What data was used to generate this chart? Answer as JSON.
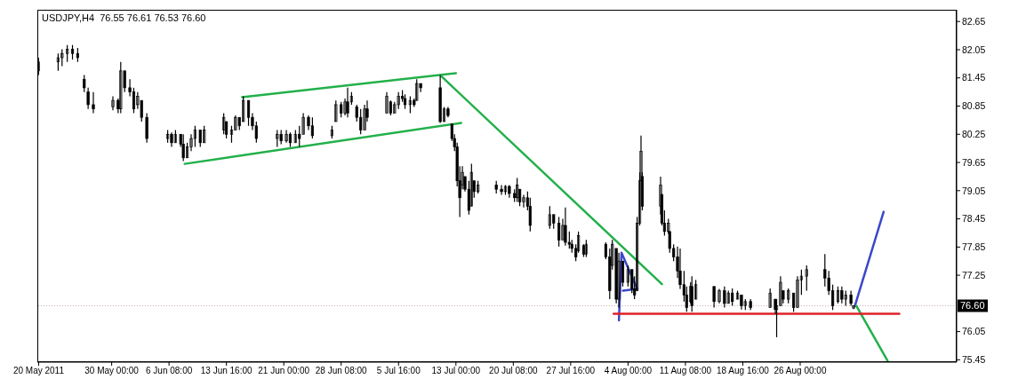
{
  "chart_data": {
    "type": "candlestick",
    "title": "USDJPY,H4  76.55 76.61 76.53 76.60",
    "color": "#000000",
    "x": [
      "2011-05-20T16:00",
      "2011-05-23T04:00",
      "2011-05-23T16:00",
      "2011-05-24T08:00",
      "2011-05-25T00:00",
      "2011-05-25T16:00",
      "2011-05-26T12:00",
      "2011-05-27T00:00",
      "2011-05-27T16:00",
      "2011-05-30T04:00",
      "2011-05-30T20:00",
      "2011-05-31T04:00",
      "2011-05-31T16:00",
      "2011-06-01T08:00",
      "2011-06-01T20:00",
      "2011-06-02T08:00",
      "2011-06-02T20:00",
      "2011-06-03T12:00",
      "2011-06-06T04:00",
      "2011-06-06T16:00",
      "2011-06-07T04:00",
      "2011-06-07T20:00",
      "2011-06-08T04:00",
      "2011-06-08T16:00",
      "2011-06-09T04:00",
      "2011-06-09T16:00",
      "2011-06-10T08:00",
      "2011-06-10T20:00",
      "2011-06-13T08:00",
      "2011-06-13T16:00",
      "2011-06-14T08:00",
      "2011-06-14T20:00",
      "2011-06-15T08:00",
      "2011-06-15T20:00",
      "2011-06-16T12:00",
      "2011-06-17T00:00",
      "2011-06-17T12:00",
      "2011-06-20T04:00",
      "2011-06-20T16:00",
      "2011-06-21T08:00",
      "2011-06-21T20:00",
      "2011-06-22T12:00",
      "2011-06-23T00:00",
      "2011-06-23T12:00",
      "2011-06-24T04:00",
      "2011-06-24T16:00",
      "2011-06-27T04:00",
      "2011-06-27T16:00",
      "2011-06-28T08:00",
      "2011-06-28T20:00",
      "2011-06-29T04:00",
      "2011-06-29T16:00",
      "2011-06-30T08:00",
      "2011-06-30T20:00",
      "2011-07-01T08:00",
      "2011-07-01T16:00",
      "2011-07-04T04:00",
      "2011-07-04T16:00",
      "2011-07-05T04:00",
      "2011-07-05T16:00",
      "2011-07-06T04:00",
      "2011-07-06T12:00",
      "2011-07-07T04:00",
      "2011-07-07T16:00",
      "2011-07-08T00:00",
      "2011-07-08T12:00",
      "2011-07-11T00:00",
      "2011-07-11T12:00",
      "2011-07-12T00:00",
      "2011-07-12T12:00",
      "2011-07-12T20:00",
      "2011-07-13T04:00",
      "2011-07-13T12:00",
      "2011-07-13T20:00",
      "2011-07-14T04:00",
      "2011-07-14T16:00",
      "2011-07-15T00:00",
      "2011-07-15T08:00",
      "2011-07-15T20:00",
      "2011-07-18T04:00",
      "2011-07-18T20:00",
      "2011-07-19T08:00",
      "2011-07-19T20:00",
      "2011-07-20T12:00",
      "2011-07-20T20:00",
      "2011-07-21T04:00",
      "2011-07-21T16:00",
      "2011-07-22T04:00",
      "2011-07-22T12:00",
      "2011-07-25T00:00",
      "2011-07-25T12:00",
      "2011-07-26T04:00",
      "2011-07-26T16:00",
      "2011-07-27T00:00",
      "2011-07-27T12:00",
      "2011-07-27T20:00",
      "2011-07-28T08:00",
      "2011-07-28T16:00",
      "2011-07-29T08:00",
      "2011-07-29T16:00",
      "2011-08-01T04:00",
      "2011-08-01T16:00",
      "2011-08-02T00:00",
      "2011-08-02T12:00",
      "2011-08-02T20:00",
      "2011-08-03T08:00",
      "2011-08-04T00:00",
      "2011-08-04T12:00",
      "2011-08-04T20:00",
      "2011-08-05T04:00",
      "2011-08-05T12:00",
      "2011-08-05T16:00",
      "2011-08-05T20:00",
      "2011-08-08T04:00",
      "2011-08-08T08:00",
      "2011-08-08T16:00",
      "2011-08-09T04:00",
      "2011-08-09T08:00",
      "2011-08-09T20:00",
      "2011-08-10T08:00",
      "2011-08-10T16:00",
      "2011-08-11T04:00",
      "2011-08-11T12:00",
      "2011-08-12T00:00",
      "2011-08-12T04:00",
      "2011-08-12T16:00",
      "2011-08-15T00:00",
      "2011-08-15T16:00",
      "2011-08-16T08:00",
      "2011-08-16T20:00",
      "2011-08-17T08:00",
      "2011-08-18T00:00",
      "2011-08-18T12:00",
      "2011-08-19T00:00",
      "2011-08-19T16:00",
      "2011-08-22T04:00",
      "2011-08-22T20:00",
      "2011-08-23T00:00",
      "2011-08-23T12:00",
      "2011-08-23T20:00",
      "2011-08-24T12:00",
      "2011-08-25T04:00",
      "2011-08-25T16:00",
      "2011-08-26T04:00",
      "2011-08-26T20:00",
      "2011-08-29T04:00",
      "2011-08-29T16:00",
      "2011-08-30T04:00",
      "2011-08-30T20:00",
      "2011-08-31T08:00",
      "2011-08-31T20:00",
      "2011-09-01T12:00",
      "2011-09-01T20:00"
    ],
    "ohlc": [
      [
        81.6,
        81.88,
        81.51,
        81.79
      ],
      [
        81.79,
        81.97,
        81.6,
        81.88
      ],
      [
        81.88,
        82.06,
        81.7,
        81.97
      ],
      [
        81.97,
        82.15,
        81.79,
        82.06
      ],
      [
        82.06,
        82.15,
        81.84,
        81.97
      ],
      [
        81.97,
        82.09,
        81.79,
        81.88
      ],
      [
        81.42,
        81.51,
        81.15,
        81.24
      ],
      [
        81.15,
        81.24,
        80.79,
        80.88
      ],
      [
        80.88,
        81.15,
        80.7,
        80.79
      ],
      [
        80.83,
        81.06,
        80.76,
        80.97
      ],
      [
        80.97,
        81.01,
        80.7,
        80.79
      ],
      [
        80.79,
        81.79,
        80.7,
        81.6
      ],
      [
        81.6,
        81.6,
        81.15,
        81.24
      ],
      [
        81.24,
        81.42,
        81.06,
        81.15
      ],
      [
        81.15,
        81.24,
        80.7,
        80.79
      ],
      [
        80.88,
        81.15,
        80.79,
        81.06
      ],
      [
        80.97,
        80.97,
        80.52,
        80.61
      ],
      [
        80.61,
        80.7,
        80.07,
        80.16
      ],
      [
        80.16,
        80.34,
        80.07,
        80.25
      ],
      [
        80.25,
        80.29,
        79.98,
        80.07
      ],
      [
        80.07,
        80.34,
        80.07,
        80.25
      ],
      [
        80.25,
        80.25,
        79.98,
        80.04
      ],
      [
        80.04,
        80.25,
        79.68,
        79.75
      ],
      [
        79.75,
        80.07,
        79.75,
        79.98
      ],
      [
        79.98,
        80.25,
        79.89,
        80.16
      ],
      [
        80.16,
        80.43,
        79.98,
        80.34
      ],
      [
        80.34,
        80.34,
        79.98,
        80.07
      ],
      [
        80.07,
        80.43,
        80.07,
        80.34
      ],
      [
        80.34,
        80.7,
        80.25,
        80.61
      ],
      [
        80.52,
        80.52,
        80.16,
        80.25
      ],
      [
        80.25,
        80.43,
        80.07,
        80.34
      ],
      [
        80.34,
        80.65,
        80.34,
        80.61
      ],
      [
        80.61,
        80.61,
        80.34,
        80.43
      ],
      [
        80.52,
        81.06,
        80.52,
        80.97
      ],
      [
        80.97,
        80.97,
        80.43,
        80.61
      ],
      [
        80.61,
        80.7,
        80.34,
        80.43
      ],
      [
        80.43,
        80.52,
        80.07,
        80.16
      ],
      [
        80.16,
        80.34,
        79.98,
        80.25
      ],
      [
        80.25,
        80.34,
        80.04,
        80.11
      ],
      [
        80.11,
        80.34,
        80.07,
        80.25
      ],
      [
        80.25,
        80.29,
        79.98,
        80.07
      ],
      [
        80.07,
        80.34,
        80.07,
        80.25
      ],
      [
        80.25,
        80.43,
        79.98,
        80.16
      ],
      [
        80.25,
        80.7,
        80.25,
        80.61
      ],
      [
        80.61,
        80.65,
        80.34,
        80.43
      ],
      [
        80.43,
        80.61,
        80.16,
        80.22
      ],
      [
        80.22,
        80.43,
        80.16,
        80.34
      ],
      [
        80.52,
        80.97,
        80.52,
        80.88
      ],
      [
        80.88,
        80.94,
        80.61,
        80.7
      ],
      [
        80.7,
        81.01,
        80.65,
        80.94
      ],
      [
        80.94,
        81.24,
        80.61,
        80.7
      ],
      [
        80.94,
        81.15,
        80.88,
        81.06
      ],
      [
        80.83,
        80.88,
        80.52,
        80.61
      ],
      [
        80.61,
        80.79,
        80.25,
        80.34
      ],
      [
        80.34,
        80.88,
        80.34,
        80.79
      ],
      [
        80.79,
        80.97,
        80.52,
        80.61
      ],
      [
        80.7,
        81.15,
        80.7,
        81.06
      ],
      [
        80.94,
        80.97,
        80.65,
        80.7
      ],
      [
        80.7,
        80.94,
        80.7,
        80.88
      ],
      [
        80.88,
        81.15,
        80.79,
        81.06
      ],
      [
        81.06,
        81.19,
        80.94,
        81.01
      ],
      [
        81.01,
        81.1,
        80.79,
        80.88
      ],
      [
        80.88,
        81.06,
        80.7,
        80.97
      ],
      [
        80.97,
        81.01,
        80.83,
        80.88
      ],
      [
        80.97,
        81.42,
        80.97,
        81.33
      ],
      [
        81.33,
        81.33,
        81.15,
        81.24
      ],
      [
        81.24,
        81.51,
        80.49,
        80.52
      ],
      [
        80.52,
        80.83,
        80.52,
        80.79
      ],
      [
        80.79,
        80.83,
        80.61,
        80.65
      ],
      [
        80.47,
        80.47,
        80.11,
        80.16
      ],
      [
        80.16,
        80.25,
        79.89,
        79.98
      ],
      [
        79.98,
        80.07,
        79.14,
        79.26
      ],
      [
        79.26,
        79.57,
        78.49,
        78.9
      ],
      [
        79.17,
        79.57,
        79.08,
        79.44
      ],
      [
        79.35,
        79.35,
        79.03,
        79.08
      ],
      [
        79.08,
        79.26,
        78.54,
        78.63
      ],
      [
        78.72,
        79.62,
        78.72,
        79.44
      ],
      [
        79.26,
        79.26,
        78.9,
        79.03
      ],
      [
        79.03,
        79.26,
        78.99,
        79.17
      ],
      [
        79.17,
        79.26,
        78.99,
        79.08
      ],
      [
        79.08,
        79.17,
        78.96,
        79.03
      ],
      [
        79.03,
        79.17,
        78.96,
        79.14
      ],
      [
        79.14,
        79.17,
        78.9,
        78.99
      ],
      [
        78.99,
        79.08,
        78.81,
        78.9
      ],
      [
        78.9,
        79.32,
        78.81,
        79.17
      ],
      [
        79.08,
        79.08,
        78.72,
        78.81
      ],
      [
        78.81,
        78.96,
        78.69,
        78.9
      ],
      [
        78.9,
        79.03,
        78.63,
        78.72
      ],
      [
        78.72,
        78.9,
        78.18,
        78.31
      ],
      [
        78.31,
        78.72,
        78.24,
        78.54
      ],
      [
        78.54,
        78.54,
        78.24,
        78.36
      ],
      [
        78.36,
        78.49,
        77.86,
        78.0
      ],
      [
        78.0,
        78.45,
        78.0,
        78.31
      ],
      [
        78.31,
        78.69,
        77.88,
        77.95
      ],
      [
        77.95,
        78.18,
        77.82,
        77.91
      ],
      [
        77.91,
        78.0,
        77.73,
        77.82
      ],
      [
        77.82,
        77.91,
        77.55,
        77.64
      ],
      [
        77.77,
        78.18,
        77.73,
        78.09
      ],
      [
        77.88,
        77.91,
        77.64,
        77.7
      ],
      [
        77.7,
        78.0,
        77.64,
        77.91
      ],
      [
        77.91,
        77.95,
        77.59,
        77.64
      ],
      [
        77.64,
        77.82,
        76.74,
        76.92
      ],
      [
        77.46,
        78.0,
        77.37,
        77.91
      ],
      [
        77.82,
        77.82,
        76.65,
        76.74
      ],
      [
        76.74,
        77.73,
        76.56,
        77.55
      ],
      [
        77.55,
        77.55,
        77.01,
        77.1
      ],
      [
        77.1,
        77.46,
        77.01,
        77.37
      ],
      [
        77.37,
        77.37,
        76.87,
        76.96
      ],
      [
        76.96,
        77.23,
        76.74,
        76.83
      ],
      [
        76.92,
        78.49,
        76.92,
        78.36
      ],
      [
        78.36,
        79.44,
        78.31,
        79.26
      ],
      [
        79.26,
        80.22,
        79.26,
        79.89
      ],
      [
        79.35,
        79.44,
        78.63,
        78.72
      ],
      [
        78.72,
        79.35,
        78.54,
        79.17
      ],
      [
        78.96,
        78.99,
        78.31,
        78.36
      ],
      [
        78.36,
        78.63,
        78.09,
        78.18
      ],
      [
        78.18,
        78.45,
        78.13,
        78.36
      ],
      [
        78.18,
        78.18,
        77.73,
        77.82
      ],
      [
        77.82,
        77.91,
        77.55,
        77.64
      ],
      [
        77.64,
        77.86,
        77.19,
        77.34
      ],
      [
        77.34,
        77.82,
        76.96,
        77.05
      ],
      [
        77.05,
        77.34,
        76.69,
        76.83
      ],
      [
        76.83,
        77.01,
        76.47,
        76.56
      ],
      [
        76.69,
        77.1,
        76.65,
        77.01
      ],
      [
        77.01,
        77.23,
        76.47,
        76.6
      ],
      [
        76.74,
        77.15,
        76.74,
        77.05
      ],
      [
        77.01,
        77.01,
        76.56,
        76.69
      ],
      [
        76.69,
        76.96,
        76.65,
        76.92
      ],
      [
        76.92,
        77.01,
        76.56,
        76.65
      ],
      [
        76.65,
        76.92,
        76.65,
        76.87
      ],
      [
        76.87,
        76.97,
        76.6,
        76.69
      ],
      [
        76.74,
        76.92,
        76.74,
        76.87
      ],
      [
        76.83,
        76.83,
        76.52,
        76.6
      ],
      [
        76.6,
        76.74,
        76.51,
        76.69
      ],
      [
        76.69,
        76.74,
        76.51,
        76.56
      ],
      [
        76.56,
        76.97,
        76.56,
        76.87
      ],
      [
        76.74,
        76.74,
        76.43,
        76.52
      ],
      [
        76.52,
        76.74,
        75.93,
        76.6
      ],
      [
        76.6,
        77.23,
        76.6,
        77.1
      ],
      [
        76.92,
        76.92,
        76.65,
        76.74
      ],
      [
        76.74,
        76.97,
        76.65,
        76.92
      ],
      [
        76.87,
        76.87,
        76.47,
        76.56
      ],
      [
        76.56,
        77.23,
        76.56,
        77.15
      ],
      [
        77.15,
        77.37,
        76.83,
        77.23
      ],
      [
        77.23,
        77.46,
        76.92,
        77.37
      ],
      [
        77.37,
        77.7,
        77.01,
        77.19
      ],
      [
        77.19,
        77.34,
        76.83,
        76.92
      ],
      [
        76.92,
        77.05,
        76.51,
        76.6
      ],
      [
        76.69,
        77.01,
        76.65,
        76.92
      ],
      [
        76.92,
        77.01,
        76.65,
        76.74
      ],
      [
        76.74,
        76.92,
        76.6,
        76.83
      ],
      [
        76.83,
        76.92,
        76.6,
        76.65
      ],
      [
        76.55,
        76.61,
        76.53,
        76.6
      ]
    ],
    "series": [
      {
        "type": "line",
        "color": "#22b04a",
        "x": [
          "2011-06-15T16:00",
          "2011-07-13T00:00"
        ],
        "values": [
          81.04,
          81.55
        ]
      },
      {
        "type": "line",
        "color": "#22b04a",
        "x": [
          "2011-06-08T08:00",
          "2011-07-13T16:00"
        ],
        "values": [
          79.62,
          80.49
        ]
      },
      {
        "type": "line",
        "color": "#22b04a",
        "x": [
          "2011-07-11T04:00",
          "2011-08-08T08:00"
        ],
        "values": [
          81.48,
          77.06
        ]
      },
      {
        "type": "line",
        "color": "#3a48c8",
        "x": [
          "2011-08-02T20:00",
          "2011-08-03T04:00",
          "2011-08-05T04:00",
          "2011-08-03T08:00"
        ],
        "values": [
          76.29,
          77.73,
          76.96,
          76.92
        ]
      },
      {
        "type": "line",
        "color": "#3a48c8",
        "x": [
          "2011-09-02T00:00",
          "2011-09-05T16:00"
        ],
        "values": [
          76.6,
          78.6
        ]
      },
      {
        "type": "line",
        "color": "#22b04a",
        "x": [
          "2011-09-02T04:00",
          "2011-09-06T04:00"
        ],
        "values": [
          76.6,
          75.43
        ]
      },
      {
        "type": "line",
        "color": "#e02028",
        "x": [
          "2011-08-02T04:00",
          "2011-09-07T16:00"
        ],
        "values": [
          76.43,
          76.43
        ]
      }
    ],
    "ref_lines": [
      {
        "axis": "y",
        "value": 76.6,
        "label": "76.60",
        "color": "#c8a8b8",
        "line_style": "dotted"
      }
    ],
    "xlim": [
      "2011-05-20T12:00",
      "2011-09-15T00:00"
    ],
    "xticks": [
      {
        "value": "2011-05-20T16:00",
        "label": "20 May 2011"
      },
      {
        "value": "2011-05-30T00:00",
        "label": "30 May 00:00"
      },
      {
        "value": "2011-06-06T08:00",
        "label": "6 Jun 08:00"
      },
      {
        "value": "2011-06-13T16:00",
        "label": "13 Jun 16:00"
      },
      {
        "value": "2011-06-21T00:00",
        "label": "21 Jun 00:00"
      },
      {
        "value": "2011-06-28T08:00",
        "label": "28 Jun 08:00"
      },
      {
        "value": "2011-07-05T16:00",
        "label": "5 Jul 16:00"
      },
      {
        "value": "2011-07-13T00:00",
        "label": "13 Jul 00:00"
      },
      {
        "value": "2011-07-20T08:00",
        "label": "20 Jul 08:00"
      },
      {
        "value": "2011-07-27T16:00",
        "label": "27 Jul 16:00"
      },
      {
        "value": "2011-08-04T00:00",
        "label": "4 Aug 00:00"
      },
      {
        "value": "2011-08-11T08:00",
        "label": "11 Aug 08:00"
      },
      {
        "value": "2011-08-18T16:00",
        "label": "18 Aug 16:00"
      },
      {
        "value": "2011-08-26T00:00",
        "label": "26 Aug 00:00"
      }
    ],
    "ylim": [
      75.4,
      82.9
    ],
    "yticks": [
      82.65,
      82.05,
      81.45,
      80.85,
      80.25,
      79.65,
      79.05,
      78.45,
      77.85,
      77.25,
      76.05,
      75.45
    ]
  }
}
